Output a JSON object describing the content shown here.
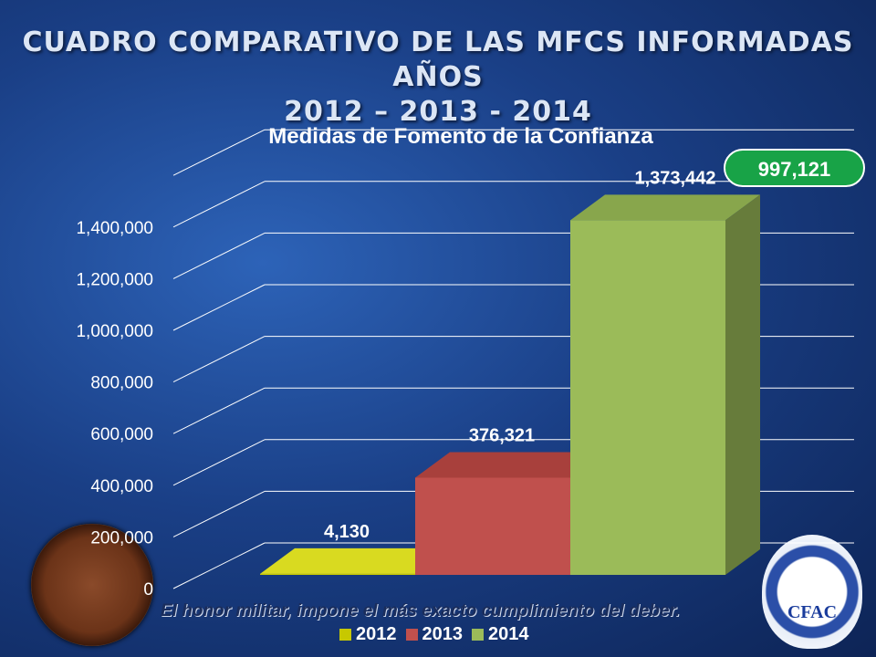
{
  "header": {
    "title_line1": "CUADRO COMPARATIVO DE LAS MFCS INFORMADAS AÑOS",
    "title_line2": "2012 – 2013 - 2014"
  },
  "badge": {
    "value": "997,121"
  },
  "motto": "El honor militar, impone el más exacto cumplimiento del deber.",
  "logo_right": {
    "text": "CFAC"
  },
  "colors": {
    "2012": "#c7c800",
    "2013": "#c0504d",
    "2014": "#9bbb59"
  },
  "chart_data": {
    "type": "bar",
    "title": "Medidas de Fomento de la Confianza",
    "categories": [
      "2012",
      "2013",
      "2014"
    ],
    "values": [
      4130,
      376321,
      1373442
    ],
    "value_labels": [
      "4,130",
      "376,321",
      "1,373,442"
    ],
    "yticks": [
      "0",
      "200,000",
      "400,000",
      "600,000",
      "800,000",
      "1,000,000",
      "1,200,000",
      "1,400,000"
    ],
    "ylim": [
      0,
      1600000
    ],
    "legend": [
      "2012",
      "2013",
      "2014"
    ],
    "legend_position": "bottom",
    "grid": true
  }
}
